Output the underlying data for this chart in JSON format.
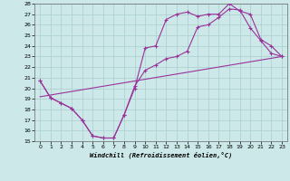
{
  "xlabel": "Windchill (Refroidissement éolien,°C)",
  "bg_color": "#cce8e8",
  "line_color": "#993399",
  "xlim": [
    -0.5,
    23.5
  ],
  "ylim": [
    15,
    28
  ],
  "xticks": [
    0,
    1,
    2,
    3,
    4,
    5,
    6,
    7,
    8,
    9,
    10,
    11,
    12,
    13,
    14,
    15,
    16,
    17,
    18,
    19,
    20,
    21,
    22,
    23
  ],
  "yticks": [
    15,
    16,
    17,
    18,
    19,
    20,
    21,
    22,
    23,
    24,
    25,
    26,
    27,
    28
  ],
  "line1_x": [
    0,
    1,
    2,
    3,
    4,
    5,
    6,
    7,
    8,
    9,
    10,
    11,
    12,
    13,
    14,
    15,
    16,
    17,
    18,
    19,
    20,
    21,
    22,
    23
  ],
  "line1_y": [
    20.7,
    19.1,
    18.6,
    18.1,
    17.0,
    15.5,
    15.3,
    15.3,
    17.5,
    20.0,
    23.8,
    24.0,
    26.5,
    27.0,
    27.2,
    26.8,
    27.0,
    27.0,
    28.0,
    27.3,
    27.0,
    24.6,
    24.0,
    23.0
  ],
  "line2_x": [
    0,
    1,
    2,
    3,
    4,
    5,
    6,
    7,
    8,
    9,
    10,
    11,
    12,
    13,
    14,
    15,
    16,
    17,
    18,
    19,
    20,
    21,
    22,
    23
  ],
  "line2_y": [
    20.7,
    19.1,
    18.6,
    18.1,
    17.0,
    15.5,
    15.3,
    15.3,
    17.5,
    20.2,
    21.7,
    22.2,
    22.8,
    23.0,
    23.5,
    25.8,
    26.0,
    26.7,
    27.5,
    27.4,
    25.7,
    24.5,
    23.3,
    23.0
  ],
  "line3_x": [
    0,
    23
  ],
  "line3_y": [
    19.2,
    23.0
  ]
}
